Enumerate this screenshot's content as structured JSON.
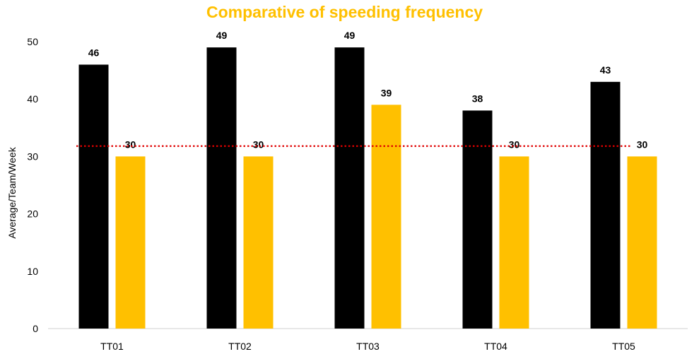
{
  "chart_data": {
    "type": "bar",
    "title": "Comparative of speeding frequency",
    "xlabel": "",
    "ylabel": "Average/Team/Week",
    "categories": [
      "TT01",
      "TT02",
      "TT03",
      "TT04",
      "TT05"
    ],
    "series": [
      {
        "values": [
          46,
          49,
          49,
          38,
          43
        ],
        "color": "#000000"
      },
      {
        "values": [
          30,
          30,
          39,
          30,
          30
        ],
        "color": "#FFC000"
      }
    ],
    "reference_line": {
      "value": 31.8,
      "color": "#E00000",
      "style": "dotted"
    },
    "ylim": [
      0,
      50
    ],
    "yticks": [
      0,
      10,
      20,
      30,
      40,
      50
    ],
    "grid": false,
    "legend": "none"
  }
}
